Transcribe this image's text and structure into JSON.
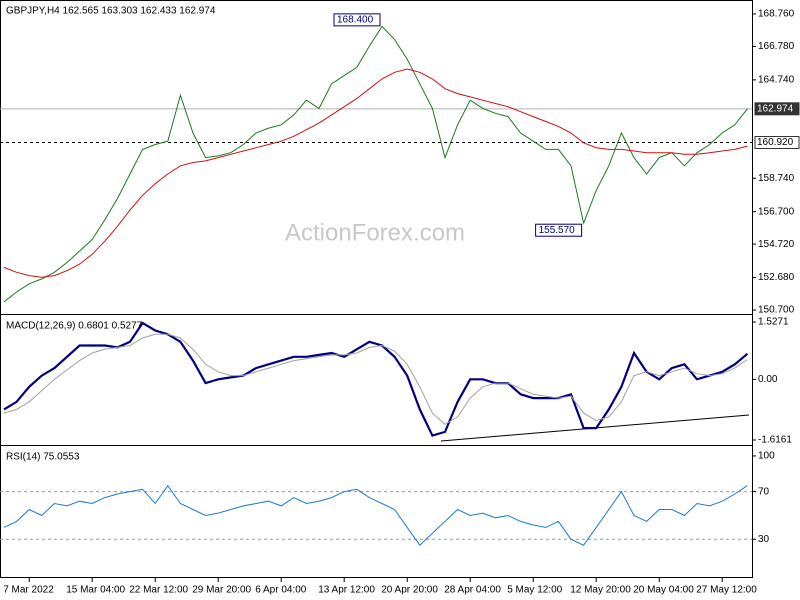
{
  "chart_data": [
    {
      "type": "line",
      "title": "GBPJPY,H4 162.565 163.303 162.433 162.974",
      "watermark": "ActionForex.com",
      "ylim": [
        150.52,
        169.55
      ],
      "yticks": [
        {
          "value": 150.7,
          "label": "150.700"
        },
        {
          "value": 152.68,
          "label": "152.680"
        },
        {
          "value": 154.72,
          "label": "154.720"
        },
        {
          "value": 156.7,
          "label": "156.700"
        },
        {
          "value": 158.74,
          "label": "158.740"
        },
        {
          "value": 164.74,
          "label": "164.740"
        },
        {
          "value": 166.78,
          "label": "166.780"
        },
        {
          "value": 168.76,
          "label": "168.760"
        }
      ],
      "hlines": [
        162.974,
        {
          "value": 160.92,
          "label": "160.920"
        }
      ],
      "annotations": [
        {
          "at": 30,
          "value": 168.4,
          "label": "168.400"
        },
        {
          "at": 46,
          "value": 155.57,
          "label": "155.570"
        }
      ],
      "series": [
        {
          "color": "#1a7a1a",
          "values": [
            151.2,
            151.8,
            152.3,
            152.6,
            153.0,
            153.6,
            154.3,
            155.0,
            156.2,
            157.5,
            159.0,
            160.5,
            160.8,
            161.0,
            163.8,
            161.5,
            160.0,
            160.1,
            160.3,
            160.8,
            161.5,
            161.8,
            162.0,
            162.6,
            163.5,
            163.0,
            164.5,
            165.0,
            165.5,
            166.8,
            168.0,
            167.2,
            166.0,
            164.5,
            163.0,
            160.0,
            162.0,
            163.5,
            163.0,
            162.7,
            162.5,
            161.5,
            161.0,
            160.5,
            160.5,
            159.5,
            156.0,
            158.0,
            159.5,
            161.5,
            160.0,
            159.0,
            160.0,
            160.3,
            159.5,
            160.3,
            160.8,
            161.5,
            162.0,
            162.974
          ]
        },
        {
          "color": "#d01010",
          "values": [
            153.3,
            153.0,
            152.8,
            152.7,
            152.8,
            153.1,
            153.5,
            154.1,
            154.9,
            155.8,
            156.8,
            157.7,
            158.4,
            159.0,
            159.5,
            159.7,
            159.8,
            160.0,
            160.2,
            160.4,
            160.6,
            160.8,
            161.0,
            161.3,
            161.7,
            162.1,
            162.6,
            163.1,
            163.6,
            164.2,
            164.8,
            165.2,
            165.4,
            165.2,
            164.8,
            164.2,
            163.9,
            163.7,
            163.5,
            163.3,
            163.1,
            162.8,
            162.5,
            162.2,
            161.9,
            161.5,
            160.9,
            160.6,
            160.5,
            160.5,
            160.4,
            160.3,
            160.3,
            160.3,
            160.2,
            160.2,
            160.3,
            160.4,
            160.5,
            160.7
          ]
        }
      ]
    },
    {
      "type": "line",
      "title": "MACD(12,26,9) 0.6801 0.5277",
      "ylim": [
        -1.723,
        1.687
      ],
      "yticks": [
        1.5271,
        {
          "value": 0,
          "label": "0.00"
        },
        -1.6161
      ],
      "series": [
        {
          "color": "#000080",
          "values": [
            -0.8,
            -0.6,
            -0.2,
            0.1,
            0.3,
            0.6,
            0.9,
            0.9,
            0.9,
            0.85,
            1.0,
            1.5,
            1.3,
            1.2,
            1.0,
            0.5,
            -0.1,
            0.0,
            0.05,
            0.1,
            0.3,
            0.4,
            0.5,
            0.6,
            0.6,
            0.65,
            0.7,
            0.6,
            0.8,
            1.0,
            0.9,
            0.6,
            0.1,
            -0.8,
            -1.5,
            -1.4,
            -0.6,
            0.0,
            0.0,
            -0.1,
            -0.1,
            -0.4,
            -0.5,
            -0.5,
            -0.5,
            -0.4,
            -1.3,
            -1.3,
            -0.8,
            -0.2,
            0.7,
            0.2,
            0.0,
            0.3,
            0.4,
            0.0,
            0.1,
            0.2,
            0.4,
            0.6801
          ]
        },
        {
          "color": "#a0a0a0",
          "values": [
            -0.9,
            -0.8,
            -0.6,
            -0.3,
            0.0,
            0.25,
            0.5,
            0.7,
            0.8,
            0.85,
            0.9,
            1.1,
            1.2,
            1.2,
            1.1,
            0.8,
            0.4,
            0.2,
            0.1,
            0.1,
            0.2,
            0.3,
            0.4,
            0.5,
            0.55,
            0.6,
            0.65,
            0.65,
            0.7,
            0.85,
            0.9,
            0.75,
            0.4,
            -0.2,
            -0.9,
            -1.2,
            -1.0,
            -0.5,
            -0.2,
            -0.1,
            -0.1,
            -0.25,
            -0.4,
            -0.45,
            -0.5,
            -0.45,
            -0.9,
            -1.1,
            -1.0,
            -0.6,
            0.1,
            0.2,
            0.1,
            0.2,
            0.3,
            0.15,
            0.1,
            0.15,
            0.3,
            0.5277
          ]
        }
      ]
    },
    {
      "type": "line",
      "title": "RSI(14) 75.0553",
      "ylim": [
        -1.7,
        107.5
      ],
      "yticks": [
        100,
        70,
        30
      ],
      "hlines": [
        70,
        30
      ],
      "categories": [
        null,
        null,
        "7 Mar 2022",
        null,
        null,
        null,
        null,
        "15 Mar 04:00",
        null,
        null,
        null,
        null,
        "22 Mar 12:00",
        null,
        null,
        null,
        null,
        "29 Mar 20:00",
        null,
        null,
        null,
        null,
        "6 Apr 04:00",
        null,
        null,
        null,
        null,
        "13 Apr 12:00",
        null,
        null,
        null,
        null,
        "20 Apr 20:00",
        null,
        null,
        null,
        null,
        "28 Apr 04:00",
        null,
        null,
        null,
        null,
        "5 May 12:00",
        null,
        null,
        null,
        null,
        "12 May 20:00",
        null,
        null,
        null,
        null,
        "20 May 04:00",
        null,
        null,
        null,
        null,
        "27 May 12:00",
        null,
        null
      ],
      "series": [
        {
          "color": "#1e78d8",
          "values": [
            40,
            45,
            55,
            50,
            60,
            58,
            62,
            60,
            65,
            68,
            70,
            72,
            60,
            75,
            60,
            55,
            50,
            52,
            55,
            58,
            60,
            62,
            58,
            65,
            60,
            62,
            65,
            70,
            72,
            65,
            60,
            55,
            40,
            25,
            35,
            45,
            55,
            50,
            52,
            48,
            50,
            45,
            42,
            40,
            45,
            30,
            25,
            40,
            55,
            70,
            50,
            45,
            55,
            55,
            50,
            60,
            58,
            62,
            68,
            75.0553
          ]
        }
      ]
    }
  ]
}
